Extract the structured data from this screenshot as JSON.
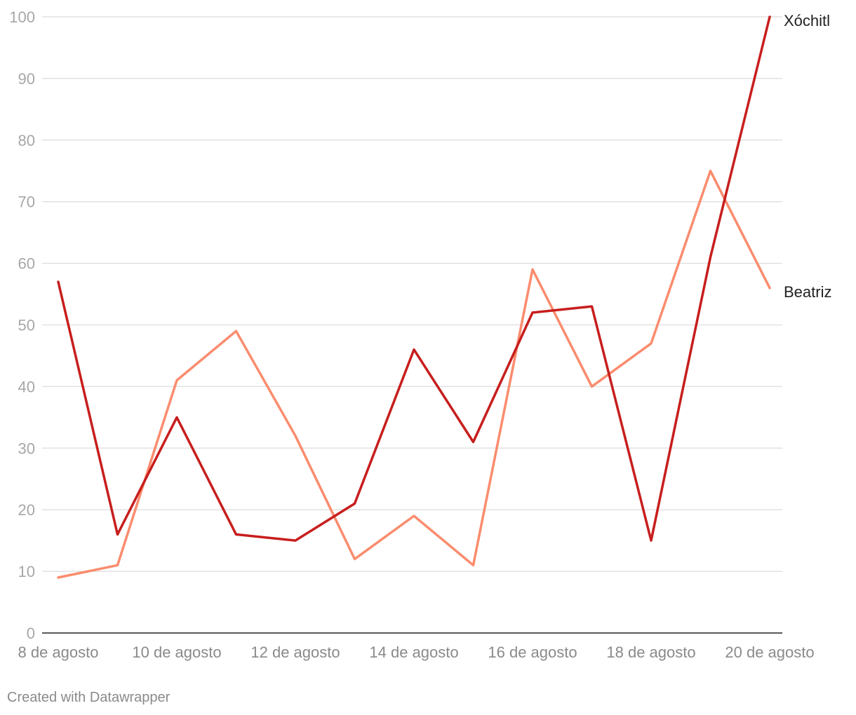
{
  "chart_data": {
    "type": "line",
    "x": [
      "8 de agosto",
      "9 de agosto",
      "10 de agosto",
      "11 de agosto",
      "12 de agosto",
      "13 de agosto",
      "14 de agosto",
      "15 de agosto",
      "16 de agosto",
      "17 de agosto",
      "18 de agosto",
      "19 de agosto",
      "20 de agosto"
    ],
    "x_tick_labels": [
      "8 de agosto",
      "10 de agosto",
      "12 de agosto",
      "14 de agosto",
      "16 de agosto",
      "18 de agosto",
      "20 de agosto"
    ],
    "y_ticks": [
      0,
      10,
      20,
      30,
      40,
      50,
      60,
      70,
      80,
      90,
      100
    ],
    "ylim": [
      0,
      100
    ],
    "grid": true,
    "legend": "inline labels at line ends",
    "series": [
      {
        "name": "Xóchitl",
        "color": "#c71e1d",
        "values": [
          57,
          16,
          35,
          16,
          15,
          21,
          46,
          31,
          52,
          53,
          15,
          61,
          100
        ]
      },
      {
        "name": "Beatriz",
        "color": "#fa8c6e",
        "values": [
          9,
          11,
          41,
          49,
          32,
          12,
          19,
          11,
          59,
          40,
          47,
          75,
          56
        ]
      }
    ],
    "title": "",
    "xlabel": "",
    "ylabel": ""
  },
  "footer": {
    "credit": "Created with Datawrapper"
  }
}
